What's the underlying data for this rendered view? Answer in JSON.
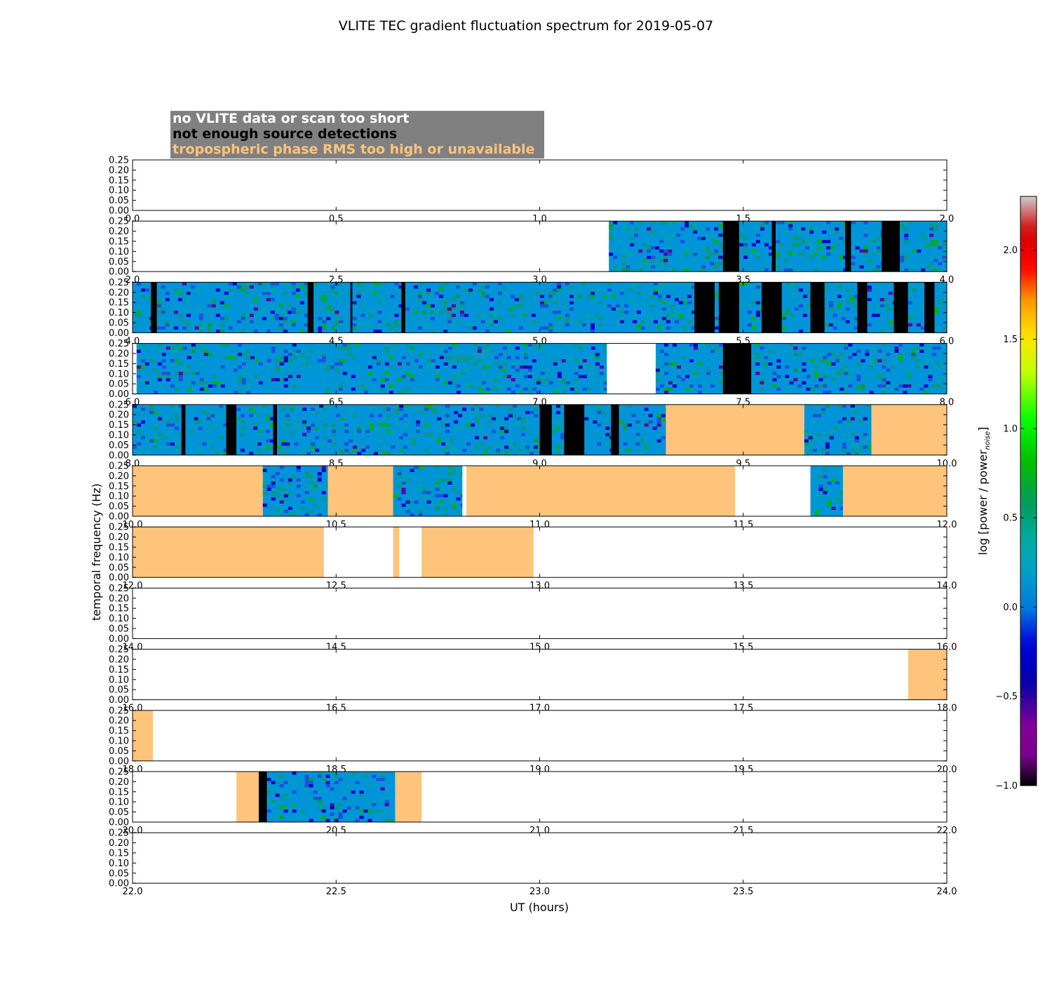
{
  "chart_data": {
    "type": "heatmap",
    "title": "VLITE TEC gradient fluctuation spectrum for 2019-05-07",
    "xlabel": "UT (hours)",
    "ylabel": "temporal frequency (Hz)",
    "ylim": [
      0,
      0.25
    ],
    "y_ticks": [
      "0.00",
      "0.05",
      "0.10",
      "0.15",
      "0.20",
      "0.25"
    ],
    "panels": [
      {
        "xlim": [
          0,
          2
        ],
        "x_ticks": [
          "0.0",
          "0.5",
          "1.0",
          "1.5",
          "2.0"
        ],
        "segments": []
      },
      {
        "xlim": [
          2,
          4
        ],
        "x_ticks": [
          "2.0",
          "2.5",
          "3.0",
          "3.5",
          "4.0"
        ],
        "segments": [
          {
            "start": 3.17,
            "end": 3.45,
            "status": "data"
          },
          {
            "start": 3.45,
            "end": 3.49,
            "status": "not_enough_detections"
          },
          {
            "start": 3.49,
            "end": 3.57,
            "status": "data"
          },
          {
            "start": 3.57,
            "end": 3.58,
            "status": "not_enough_detections"
          },
          {
            "start": 3.58,
            "end": 3.75,
            "status": "data"
          },
          {
            "start": 3.75,
            "end": 3.765,
            "status": "not_enough_detections"
          },
          {
            "start": 3.765,
            "end": 3.84,
            "status": "data"
          },
          {
            "start": 3.84,
            "end": 3.885,
            "status": "not_enough_detections"
          },
          {
            "start": 3.885,
            "end": 4.0,
            "status": "data"
          }
        ]
      },
      {
        "xlim": [
          4,
          6
        ],
        "x_ticks": [
          "4.0",
          "4.5",
          "5.0",
          "5.5",
          "6.0"
        ],
        "segments": [
          {
            "start": 4.0,
            "end": 4.045,
            "status": "data"
          },
          {
            "start": 4.045,
            "end": 4.06,
            "status": "not_enough_detections"
          },
          {
            "start": 4.06,
            "end": 4.43,
            "status": "data"
          },
          {
            "start": 4.43,
            "end": 4.445,
            "status": "not_enough_detections"
          },
          {
            "start": 4.445,
            "end": 4.535,
            "status": "data"
          },
          {
            "start": 4.535,
            "end": 4.54,
            "status": "not_enough_detections"
          },
          {
            "start": 4.54,
            "end": 4.66,
            "status": "data"
          },
          {
            "start": 4.66,
            "end": 4.67,
            "status": "not_enough_detections"
          },
          {
            "start": 4.67,
            "end": 5.38,
            "status": "data"
          },
          {
            "start": 5.38,
            "end": 5.43,
            "status": "not_enough_detections"
          },
          {
            "start": 5.43,
            "end": 5.44,
            "status": "data"
          },
          {
            "start": 5.44,
            "end": 5.49,
            "status": "not_enough_detections"
          },
          {
            "start": 5.49,
            "end": 5.545,
            "status": "data"
          },
          {
            "start": 5.545,
            "end": 5.595,
            "status": "not_enough_detections"
          },
          {
            "start": 5.595,
            "end": 5.665,
            "status": "data"
          },
          {
            "start": 5.665,
            "end": 5.7,
            "status": "not_enough_detections"
          },
          {
            "start": 5.7,
            "end": 5.78,
            "status": "data"
          },
          {
            "start": 5.78,
            "end": 5.805,
            "status": "not_enough_detections"
          },
          {
            "start": 5.805,
            "end": 5.87,
            "status": "data"
          },
          {
            "start": 5.87,
            "end": 5.905,
            "status": "not_enough_detections"
          },
          {
            "start": 5.905,
            "end": 5.945,
            "status": "data"
          },
          {
            "start": 5.945,
            "end": 5.97,
            "status": "not_enough_detections"
          },
          {
            "start": 5.97,
            "end": 6.0,
            "status": "data"
          }
        ]
      },
      {
        "xlim": [
          6,
          8
        ],
        "x_ticks": [
          "6.0",
          "6.5",
          "7.0",
          "7.5",
          "8.0"
        ],
        "segments": [
          {
            "start": 6.01,
            "end": 7.165,
            "status": "data"
          },
          {
            "start": 7.285,
            "end": 7.45,
            "status": "data"
          },
          {
            "start": 7.45,
            "end": 7.52,
            "status": "not_enough_detections"
          },
          {
            "start": 7.52,
            "end": 8.0,
            "status": "data"
          }
        ]
      },
      {
        "xlim": [
          8,
          10
        ],
        "x_ticks": [
          "8.0",
          "8.5",
          "9.0",
          "9.5",
          "10.0"
        ],
        "segments": [
          {
            "start": 8.0,
            "end": 8.12,
            "status": "data"
          },
          {
            "start": 8.12,
            "end": 8.13,
            "status": "not_enough_detections"
          },
          {
            "start": 8.13,
            "end": 8.23,
            "status": "data"
          },
          {
            "start": 8.23,
            "end": 8.255,
            "status": "not_enough_detections"
          },
          {
            "start": 8.255,
            "end": 8.345,
            "status": "data"
          },
          {
            "start": 8.345,
            "end": 8.355,
            "status": "not_enough_detections"
          },
          {
            "start": 8.355,
            "end": 9.0,
            "status": "data"
          },
          {
            "start": 9.0,
            "end": 9.03,
            "status": "not_enough_detections"
          },
          {
            "start": 9.03,
            "end": 9.06,
            "status": "data"
          },
          {
            "start": 9.06,
            "end": 9.11,
            "status": "not_enough_detections"
          },
          {
            "start": 9.11,
            "end": 9.175,
            "status": "data"
          },
          {
            "start": 9.175,
            "end": 9.195,
            "status": "not_enough_detections"
          },
          {
            "start": 9.195,
            "end": 9.31,
            "status": "data"
          },
          {
            "start": 9.31,
            "end": 9.65,
            "status": "tropospheric_rms"
          },
          {
            "start": 9.65,
            "end": 9.815,
            "status": "data"
          },
          {
            "start": 9.815,
            "end": 10.0,
            "status": "tropospheric_rms"
          }
        ]
      },
      {
        "xlim": [
          10,
          12
        ],
        "x_ticks": [
          "10.0",
          "10.5",
          "11.0",
          "11.5",
          "12.0"
        ],
        "segments": [
          {
            "start": 10.0,
            "end": 10.32,
            "status": "tropospheric_rms"
          },
          {
            "start": 10.32,
            "end": 10.48,
            "status": "data"
          },
          {
            "start": 10.48,
            "end": 10.64,
            "status": "tropospheric_rms"
          },
          {
            "start": 10.64,
            "end": 10.81,
            "status": "data"
          },
          {
            "start": 10.82,
            "end": 11.48,
            "status": "tropospheric_rms"
          },
          {
            "start": 11.665,
            "end": 11.745,
            "status": "data"
          },
          {
            "start": 11.745,
            "end": 12.0,
            "status": "tropospheric_rms"
          }
        ]
      },
      {
        "xlim": [
          12,
          14
        ],
        "x_ticks": [
          "12.0",
          "12.5",
          "13.0",
          "13.5",
          "14.0"
        ],
        "segments": [
          {
            "start": 12.0,
            "end": 12.47,
            "status": "tropospheric_rms"
          },
          {
            "start": 12.64,
            "end": 12.655,
            "status": "tropospheric_rms"
          },
          {
            "start": 12.71,
            "end": 12.985,
            "status": "tropospheric_rms"
          }
        ]
      },
      {
        "xlim": [
          14,
          16
        ],
        "x_ticks": [
          "14.0",
          "14.5",
          "15.0",
          "15.5",
          "16.0"
        ],
        "segments": []
      },
      {
        "xlim": [
          16,
          18
        ],
        "x_ticks": [
          "16.0",
          "16.5",
          "17.0",
          "17.5",
          "18.0"
        ],
        "segments": [
          {
            "start": 17.905,
            "end": 18.0,
            "status": "tropospheric_rms"
          }
        ]
      },
      {
        "xlim": [
          18,
          20
        ],
        "x_ticks": [
          "18.0",
          "18.5",
          "19.0",
          "19.5",
          "20.0"
        ],
        "segments": [
          {
            "start": 18.0,
            "end": 18.05,
            "status": "tropospheric_rms"
          }
        ]
      },
      {
        "xlim": [
          20,
          22
        ],
        "x_ticks": [
          "20.0",
          "20.5",
          "21.0",
          "21.5",
          "22.0"
        ],
        "segments": [
          {
            "start": 20.255,
            "end": 20.31,
            "status": "tropospheric_rms"
          },
          {
            "start": 20.31,
            "end": 20.33,
            "status": "not_enough_detections"
          },
          {
            "start": 20.33,
            "end": 20.645,
            "status": "data"
          },
          {
            "start": 20.645,
            "end": 20.71,
            "status": "tropospheric_rms"
          }
        ]
      },
      {
        "xlim": [
          22,
          24
        ],
        "x_ticks": [
          "22.0",
          "22.5",
          "23.0",
          "23.5",
          "24.0"
        ],
        "segments": []
      }
    ],
    "status_colors": {
      "data": "#0094d8",
      "not_enough_detections": "#000000",
      "tropospheric_rms": "#ffc47c",
      "no_data": "#ffffff"
    },
    "legend": [
      {
        "text": "no VLITE data or scan too short",
        "color": "#ffffff"
      },
      {
        "text": "not enough source detections",
        "color": "#000000"
      },
      {
        "text": "tropospheric phase RMS too high or unavailable",
        "color": "#ffc47c"
      }
    ],
    "colorbar": {
      "label_main": "log [power / power",
      "label_sub": "noise",
      "label_end": "]",
      "range": [
        -1.0,
        2.3
      ],
      "ticks": [
        "−1.0",
        "−0.5",
        "0.0",
        "0.5",
        "1.0",
        "1.5",
        "2.0"
      ],
      "tick_values": [
        -1.0,
        -0.5,
        0.0,
        0.5,
        1.0,
        1.5,
        2.0
      ],
      "colormap": "spectral"
    }
  }
}
